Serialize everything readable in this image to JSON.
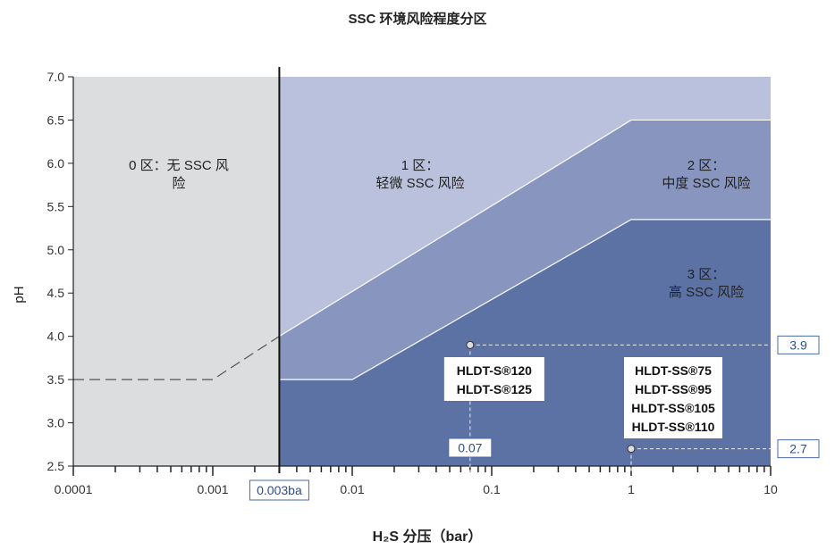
{
  "chart_data": {
    "type": "area",
    "title": "SSC 环境风险程度分区",
    "xlabel": "H₂S 分压（bar）",
    "ylabel": "pH",
    "x_scale": "log",
    "xlim": [
      0.0001,
      10
    ],
    "ylim": [
      2.5,
      7.0
    ],
    "x_ticks": [
      "0.0001",
      "0.001",
      "0.01",
      "0.1",
      "1",
      "10"
    ],
    "y_ticks": [
      "2.5",
      "3.0",
      "3.5",
      "4.0",
      "4.5",
      "5.0",
      "5.5",
      "6.0",
      "6.5",
      "7.0"
    ],
    "colors": {
      "zone0": "#dcdddf",
      "zone1": "#b9c1dc",
      "zone2": "#8795bf",
      "zone3": "#5c72a5"
    },
    "zones": [
      {
        "label_lines": [
          "0 区：无 SSC 风",
          "险"
        ]
      },
      {
        "label_lines": [
          "1 区：",
          "轻微 SSC 风险"
        ]
      },
      {
        "label_lines": [
          "2 区：",
          "中度 SSC 风险"
        ]
      },
      {
        "label_lines": [
          "3 区：",
          "高 SSC 风险"
        ]
      }
    ],
    "boundary_zone0_x": 0.003,
    "boundary_1_2": [
      [
        0.003,
        4.0
      ],
      [
        1,
        6.5
      ],
      [
        10,
        6.5
      ]
    ],
    "boundary_2_3": [
      [
        0.003,
        3.5
      ],
      [
        0.01,
        3.5
      ],
      [
        1,
        5.35
      ],
      [
        10,
        5.35
      ]
    ],
    "dashed_extension": [
      [
        0.0001,
        3.5
      ],
      [
        0.001,
        3.5
      ],
      [
        0.003,
        4.0
      ]
    ],
    "x_marker_label": "0.003ba",
    "points": [
      {
        "x": 0.07,
        "y": 3.9,
        "x_label": "0.07",
        "y_label": "3.9",
        "grades": [
          "HLDT-S®120",
          "HLDT-S®125"
        ]
      },
      {
        "x": 1,
        "y": 2.7,
        "y_label": "2.7",
        "grades": [
          "HLDT-SS®75",
          "HLDT-SS®95",
          "HLDT-SS®105",
          "HLDT-SS®110"
        ]
      }
    ]
  }
}
